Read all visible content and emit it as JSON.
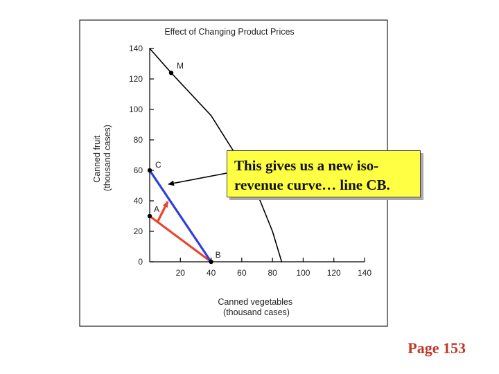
{
  "chart_data": {
    "type": "line",
    "title": "Effect of Changing Product Prices",
    "xlabel": "Canned vegetables\n(thousand cases)",
    "ylabel": "Canned fruit\n(thousand cases)",
    "xlim": [
      0,
      140
    ],
    "ylim": [
      0,
      140
    ],
    "x_ticks": [
      "20",
      "40",
      "60",
      "80",
      "100",
      "120",
      "140"
    ],
    "y_ticks": [
      "0",
      "20",
      "40",
      "60",
      "80",
      "100",
      "120",
      "140"
    ],
    "grid": false,
    "series": [
      {
        "name": "",
        "role": "production possibilities frontier",
        "color": "#000000",
        "x": [
          0,
          14,
          40,
          60,
          72,
          80,
          86
        ],
        "y": [
          140,
          124,
          96,
          64,
          40,
          20,
          0
        ]
      },
      {
        "name": "",
        "role": "iso-revenue line AB",
        "color": "#e8452a",
        "x": [
          0,
          40
        ],
        "y": [
          30,
          0
        ]
      },
      {
        "name": "",
        "role": "iso-revenue line CB",
        "color": "#2e3fe0",
        "x": [
          0,
          40
        ],
        "y": [
          60,
          0
        ]
      }
    ],
    "points": [
      {
        "label": "M",
        "x": 14,
        "y": 124
      },
      {
        "label": "C",
        "x": 0,
        "y": 60
      },
      {
        "label": "A",
        "x": 0,
        "y": 30
      },
      {
        "label": "B",
        "x": 40,
        "y": 0
      }
    ],
    "colors": {
      "frontier": "#000000",
      "line_ab": "#e8452a",
      "line_cb": "#2e3fe0",
      "shift_arrow": "#e8452a"
    }
  },
  "callout": {
    "line1": "This gives us a new iso-",
    "line2": "revenue curve… line CB.",
    "background": "#ffff44"
  },
  "page_number": "Page 153"
}
